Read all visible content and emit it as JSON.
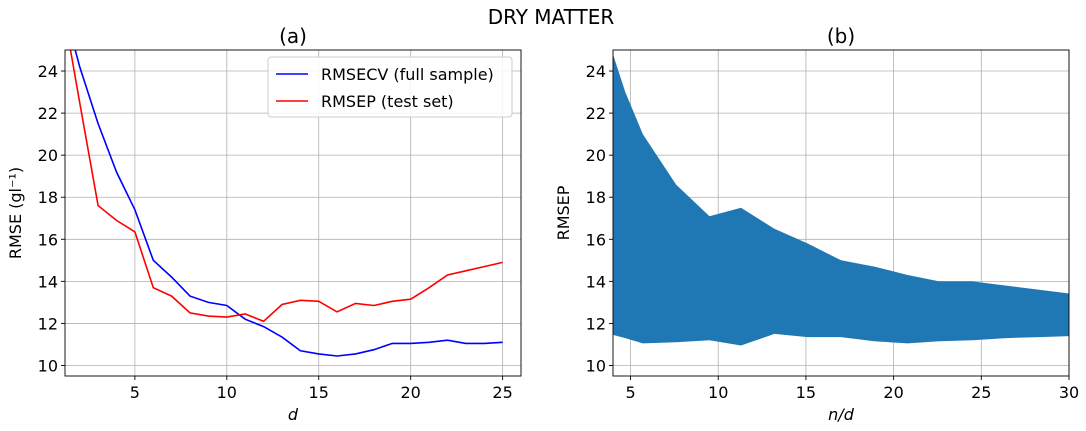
{
  "suptitle": "DRY MATTER",
  "chart_data": [
    {
      "panel": "(a)",
      "type": "line",
      "title": "(a)",
      "xlabel": "d",
      "ylabel": "RMSE (gl⁻¹)",
      "xlim": [
        1.2,
        26
      ],
      "ylim": [
        9.5,
        25
      ],
      "xticks": [
        5,
        10,
        15,
        20,
        25
      ],
      "yticks": [
        10,
        12,
        14,
        16,
        18,
        20,
        22,
        24
      ],
      "grid": true,
      "legend_position": "top-right",
      "series": [
        {
          "name": "RMSECV (full sample)",
          "color": "#0000ff",
          "x": [
            1,
            2,
            3,
            4,
            5,
            6,
            7,
            8,
            9,
            10,
            11,
            12,
            13,
            14,
            15,
            16,
            17,
            18,
            19,
            20,
            21,
            22,
            23,
            24,
            25
          ],
          "values": [
            27.5,
            24.2,
            21.5,
            19.2,
            17.4,
            15.0,
            14.2,
            13.3,
            13.0,
            12.85,
            12.2,
            11.85,
            11.35,
            10.7,
            10.55,
            10.45,
            10.55,
            10.75,
            11.05,
            11.05,
            11.1,
            11.2,
            11.05,
            11.05,
            11.1
          ]
        },
        {
          "name": "RMSEP (test set)",
          "color": "#ff0000",
          "x": [
            1,
            2,
            3,
            4,
            5,
            6,
            7,
            8,
            9,
            10,
            11,
            12,
            13,
            14,
            15,
            16,
            17,
            18,
            19,
            20,
            21,
            22,
            23,
            24,
            25
          ],
          "values": [
            27.5,
            22.5,
            17.6,
            16.9,
            16.35,
            13.7,
            13.3,
            12.5,
            12.35,
            12.3,
            12.45,
            12.1,
            12.9,
            13.1,
            13.05,
            12.55,
            12.95,
            12.85,
            13.05,
            13.15,
            13.7,
            14.3,
            14.5,
            14.7,
            14.9
          ]
        }
      ]
    },
    {
      "panel": "(b)",
      "type": "area",
      "title": "(b)",
      "xlabel": "n/d",
      "ylabel": "RMSEP",
      "xlim": [
        4,
        30
      ],
      "ylim": [
        9.5,
        25
      ],
      "xticks": [
        5,
        10,
        15,
        20,
        25,
        30
      ],
      "yticks": [
        10,
        12,
        14,
        16,
        18,
        20,
        22,
        24
      ],
      "grid": true,
      "fill_color": "#1f77b4",
      "x": [
        3.8,
        4.7,
        5.7,
        7.6,
        9.5,
        11.3,
        13.2,
        15.1,
        17.0,
        18.9,
        20.8,
        22.6,
        24.5,
        26.4,
        28.3,
        30.2
      ],
      "upper": [
        25.3,
        23.0,
        21.0,
        18.6,
        17.1,
        17.5,
        16.5,
        15.8,
        15.0,
        14.7,
        14.3,
        14.0,
        14.0,
        13.8,
        13.6,
        13.4
      ],
      "lower": [
        11.5,
        11.3,
        11.05,
        11.1,
        11.2,
        10.95,
        11.5,
        11.35,
        11.35,
        11.15,
        11.05,
        11.15,
        11.2,
        11.3,
        11.35,
        11.4
      ]
    }
  ]
}
